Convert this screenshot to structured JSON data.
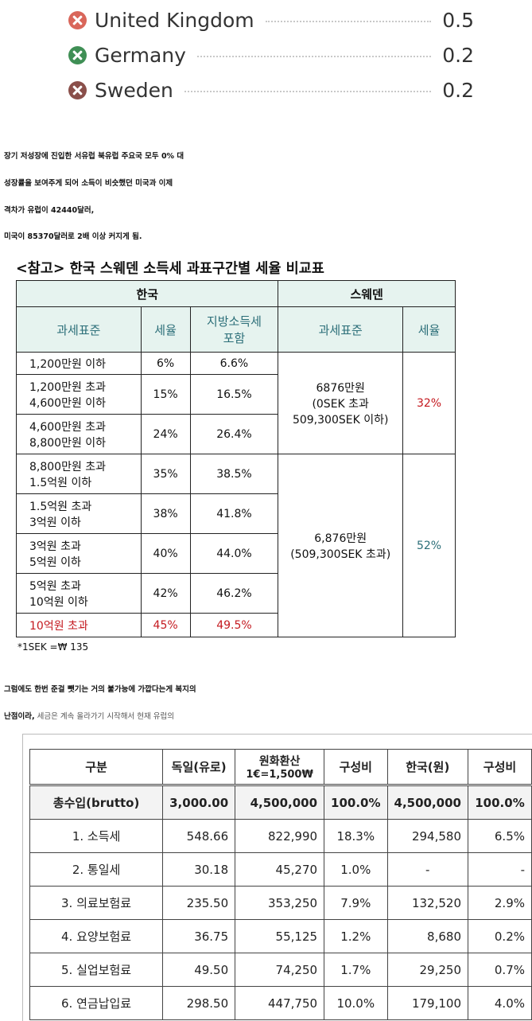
{
  "countries": [
    {
      "name": "United Kingdom",
      "value": "0.5",
      "color": "#d9665a"
    },
    {
      "name": "Germany",
      "value": "0.2",
      "color": "#3f8f55"
    },
    {
      "name": "Sweden",
      "value": "0.2",
      "color": "#8a4f4a"
    }
  ],
  "paragraph": [
    "장기 저성장에 진입한 서유럽 북유럽 주요국 모두 0% 대",
    "성장률을 보여주게 되어 소득이 비슷했던 미국과 이제",
    "격차가 유럽이 42440달러,",
    "미국이 85370달러로 2배 이상 커지게 됨."
  ],
  "tax_table": {
    "title": "<참고> 한국 스웨덴 소득세 과표구간별 세율 비교표",
    "korea_header": "한국",
    "sweden_header": "스웨덴",
    "cols": {
      "base": "과세표준",
      "rate": "세율",
      "local_line1": "지방소득세",
      "local_line2": "포함",
      "se_base": "과세표준",
      "se_rate": "세율"
    },
    "korea_rows": [
      {
        "l1": "1,200만원 이하",
        "l2": "",
        "rate": "6%",
        "local": "6.6%"
      },
      {
        "l1": "1,200만원 초과",
        "l2": "4,600만원 이하",
        "rate": "15%",
        "local": "16.5%"
      },
      {
        "l1": "4,600만원 초과",
        "l2": "8,800만원 이하",
        "rate": "24%",
        "local": "26.4%"
      },
      {
        "l1": "8,800만원 초과",
        "l2": "1.5억원 이하",
        "rate": "35%",
        "local": "38.5%"
      },
      {
        "l1": "1.5억원 초과",
        "l2": "3억원 이하",
        "rate": "38%",
        "local": "41.8%"
      },
      {
        "l1": "3억원 초과",
        "l2": "5억원 이하",
        "rate": "40%",
        "local": "44.0%"
      },
      {
        "l1": "5억원 초과",
        "l2": "10억원 이하",
        "rate": "42%",
        "local": "46.2%"
      },
      {
        "l1": "10억원 초과",
        "l2": "",
        "rate": "45%",
        "local": "49.5%"
      }
    ],
    "sweden_rows": [
      {
        "l1": "6876만원",
        "l2": "(0SEK 초과",
        "l3": "509,300SEK 이하)",
        "rate": "32%"
      },
      {
        "l1": "6,876만원",
        "l2": "(509,300SEK 초과)",
        "l3": "",
        "rate": "52%"
      }
    ],
    "note": "*1SEK =₩ 135"
  },
  "paragraph2": {
    "line1": "그럼에도 한번 준걸 뺏기는 거의 불가능에 가깝다는게 복지의",
    "line2_bold": "난점이라,",
    "line2_rest": " 세금은 계속 올라가기 시작해서 현재 유럽의"
  },
  "income_table": {
    "headers": [
      "구분",
      "독일(유로)",
      "원화환산",
      "1€=1,500₩",
      "구성비",
      "한국(원)",
      "구성비"
    ],
    "rows": [
      [
        "총수입(brutto)",
        "3,000.00",
        "4,500,000",
        "100.0%",
        "4,500,000",
        "100.0%"
      ],
      [
        "1. 소득세",
        "548.66",
        "822,990",
        "18.3%",
        "294,580",
        "6.5%"
      ],
      [
        "2. 통일세",
        "30.18",
        "45,270",
        "1.0%",
        "-",
        "-"
      ],
      [
        "3. 의료보험료",
        "235.50",
        "353,250",
        "7.9%",
        "132,520",
        "2.9%"
      ],
      [
        "4. 요양보험료",
        "36.75",
        "55,125",
        "1.2%",
        "8,680",
        "0.2%"
      ],
      [
        "5. 실업보험료",
        "49.50",
        "74,250",
        "1.7%",
        "29,250",
        "0.7%"
      ],
      [
        "6. 연금납입료",
        "298.50",
        "447,750",
        "10.0%",
        "179,100",
        "4.0%"
      ]
    ]
  }
}
